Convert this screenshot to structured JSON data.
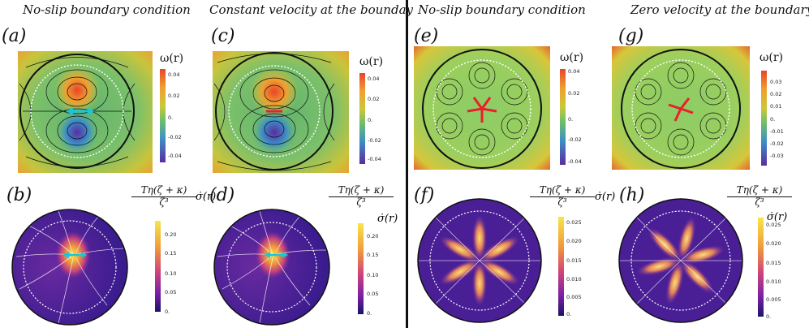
{
  "titles": {
    "a": "No-slip boundary condition",
    "c": "Constant velocity at the bounday",
    "e": "No-slip boundary condition",
    "g": "Zero velocity at the boundary"
  },
  "panel_labels": {
    "a": "(a)",
    "b": "(b)",
    "c": "(c)",
    "d": "(d)",
    "e": "(e)",
    "f": "(f)",
    "g": "(g)",
    "h": "(h)"
  },
  "colorbar_labels": {
    "vorticity": "ω(r)",
    "dissipation_numerator": "Tη(ζ + κ)",
    "dissipation_denominator": "ζ³",
    "dissipation_suffix": "σ̇(r)"
  },
  "ticks": {
    "a": [
      "0.04",
      "0.02",
      "0.",
      "-0.02",
      "-0.04"
    ],
    "c": [
      "0.04",
      "0.02",
      "0.",
      "-0.02",
      "-0.04"
    ],
    "e": [
      "0.04",
      "0.02",
      "0.",
      "-0.02",
      "-0.04"
    ],
    "g": [
      "0.03",
      "0.02",
      "0.01",
      "0.",
      "-0.01",
      "-0.02",
      "-0.03"
    ],
    "b": [
      "0.20",
      "0.15",
      "0.10",
      "0.05",
      "0."
    ],
    "d": [
      "0.20",
      "0.15",
      "0.10",
      "0.05",
      "0."
    ],
    "f": [
      "0.025",
      "0.020",
      "0.015",
      "0.010",
      "0.005",
      "0."
    ],
    "h": [
      "0.025",
      "0.020",
      "0.015",
      "0.010",
      "0.005",
      "0."
    ]
  },
  "colors": {
    "accent_cyan": "#19c7d6",
    "accent_red": "#e8202a",
    "divider": "#111111"
  }
}
